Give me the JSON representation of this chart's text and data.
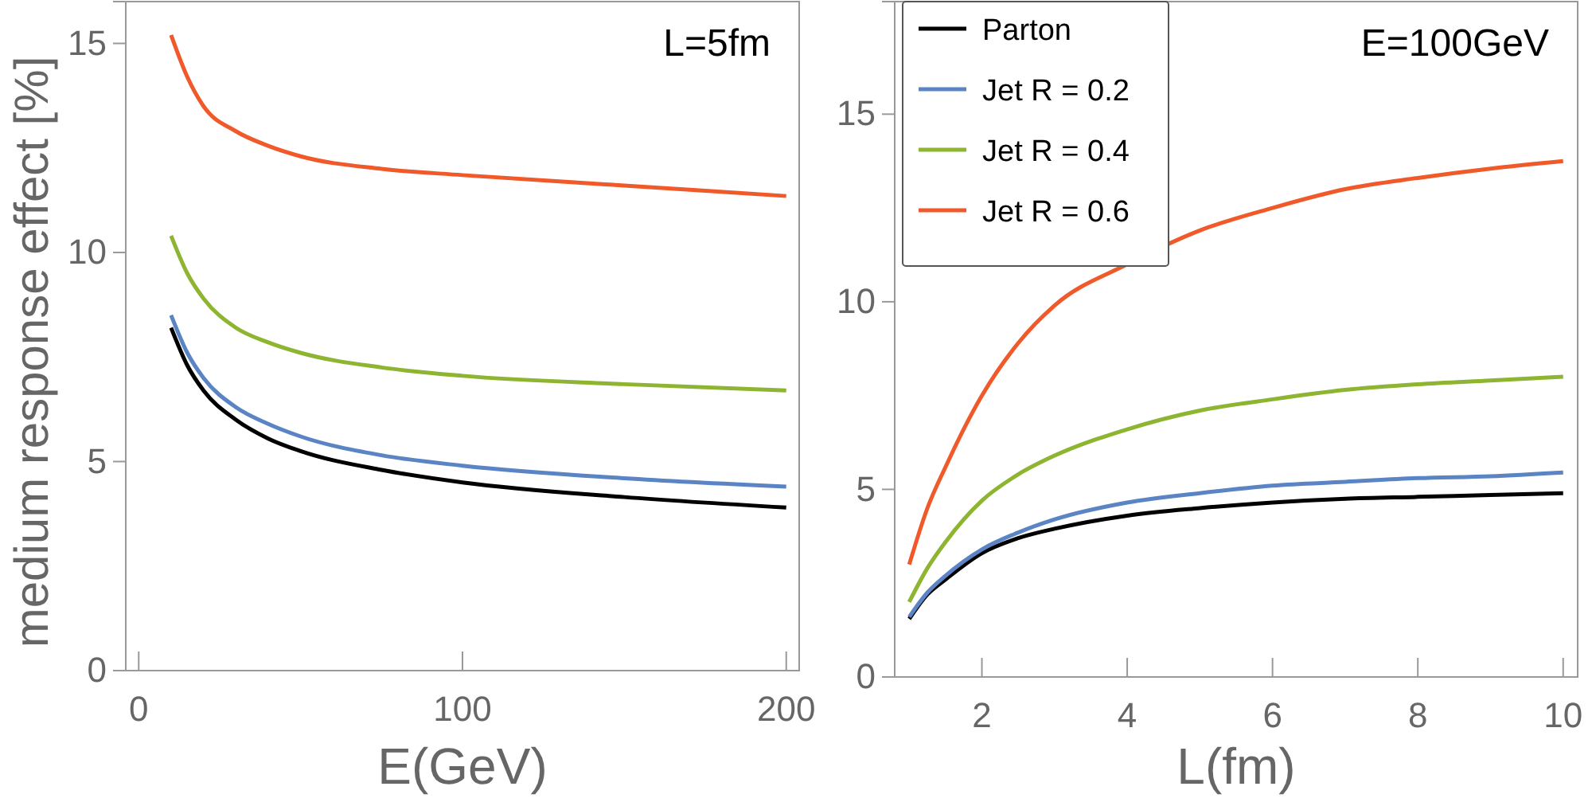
{
  "chart_data": [
    {
      "type": "line",
      "xlabel": "E(GeV)",
      "ylabel": "medium response effect [%]",
      "annotations": [
        "L=5fm"
      ],
      "xlim": [
        -4,
        204
      ],
      "ylim": [
        0,
        16
      ],
      "xticks": [
        0,
        100,
        200
      ],
      "yticks": [
        0,
        5,
        10,
        15
      ],
      "grid": false,
      "legend": false,
      "marker": "none",
      "line_style": "solid",
      "x": [
        10,
        15,
        20,
        30,
        40,
        50,
        75,
        100,
        150,
        200
      ],
      "series": [
        {
          "color": "#000000",
          "values": [
            8.2,
            7.3,
            6.7,
            6.0,
            5.55,
            5.25,
            4.8,
            4.5,
            4.15,
            3.9
          ]
        },
        {
          "color": "#5b84c4",
          "values": [
            8.5,
            7.6,
            7.0,
            6.3,
            5.9,
            5.6,
            5.15,
            4.9,
            4.6,
            4.4
          ]
        },
        {
          "color": "#8db531",
          "values": [
            10.4,
            9.5,
            8.9,
            8.2,
            7.85,
            7.6,
            7.25,
            7.05,
            6.85,
            6.7
          ]
        },
        {
          "color": "#f05a2a",
          "values": [
            15.2,
            14.2,
            13.5,
            12.9,
            12.55,
            12.3,
            12.0,
            11.85,
            11.6,
            11.35
          ]
        }
      ]
    },
    {
      "type": "line",
      "xlabel": "L(fm)",
      "annotations": [
        "E=100GeV"
      ],
      "xlim": [
        0.8,
        10.2
      ],
      "ylim": [
        0,
        18
      ],
      "xticks": [
        2,
        4,
        6,
        8,
        10
      ],
      "yticks": [
        0,
        5,
        10,
        15
      ],
      "grid": false,
      "legend": "top left",
      "marker": "none",
      "line_style": "solid",
      "x": [
        1,
        1.25,
        1.5,
        2,
        2.5,
        3,
        4,
        5,
        6,
        7,
        8,
        9,
        10
      ],
      "series": [
        {
          "name": "Parton",
          "color": "#000000",
          "values": [
            1.55,
            2.2,
            2.6,
            3.3,
            3.7,
            3.95,
            4.3,
            4.5,
            4.65,
            4.75,
            4.8,
            4.85,
            4.9
          ]
        },
        {
          "name": "Jet R = 0.2",
          "color": "#5b84c4",
          "values": [
            1.6,
            2.25,
            2.7,
            3.4,
            3.85,
            4.2,
            4.65,
            4.9,
            5.1,
            5.2,
            5.3,
            5.35,
            5.45
          ]
        },
        {
          "name": "Jet R = 0.4",
          "color": "#8db531",
          "values": [
            2.0,
            2.9,
            3.6,
            4.7,
            5.4,
            5.9,
            6.6,
            7.1,
            7.4,
            7.65,
            7.8,
            7.9,
            8.0
          ]
        },
        {
          "name": "Jet R = 0.6",
          "color": "#f05a2a",
          "values": [
            3.0,
            4.5,
            5.6,
            7.5,
            8.9,
            9.9,
            11.0,
            11.9,
            12.5,
            13.0,
            13.3,
            13.55,
            13.75
          ]
        }
      ]
    }
  ]
}
